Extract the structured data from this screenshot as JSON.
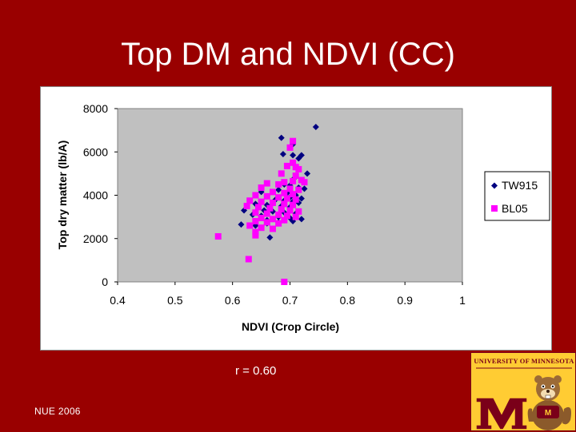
{
  "slide": {
    "title": "Top DM and NDVI (CC)",
    "r_value": "r = 0.60",
    "footer": "NUE 2006",
    "logo_text": "University of Minnesota",
    "background_color": "#990000"
  },
  "chart_data": {
    "type": "scatter",
    "xlabel": "NDVI (Crop Circle)",
    "ylabel": "Top dry matter (lb/A)",
    "xlim": [
      0.4,
      1
    ],
    "ylim": [
      0,
      8000
    ],
    "x_ticks": [
      "0.4",
      "0.5",
      "0.6",
      "0.7",
      "0.8",
      "0.9",
      "1"
    ],
    "y_ticks": [
      "0",
      "2000",
      "4000",
      "6000",
      "8000"
    ],
    "grid": false,
    "plot_area_color": "#c0c0c0",
    "legend_position": "right",
    "series": [
      {
        "name": "TW915",
        "marker": "diamond",
        "color": "#000080",
        "points": [
          [
            0.745,
            7150
          ],
          [
            0.685,
            6650
          ],
          [
            0.705,
            6350
          ],
          [
            0.688,
            5900
          ],
          [
            0.705,
            5850
          ],
          [
            0.72,
            5850
          ],
          [
            0.715,
            5700
          ],
          [
            0.73,
            5000
          ],
          [
            0.708,
            4800
          ],
          [
            0.69,
            4500
          ],
          [
            0.7,
            4450
          ],
          [
            0.715,
            4350
          ],
          [
            0.725,
            4300
          ],
          [
            0.68,
            4250
          ],
          [
            0.65,
            4150
          ],
          [
            0.695,
            4100
          ],
          [
            0.71,
            4000
          ],
          [
            0.66,
            3950
          ],
          [
            0.7,
            3900
          ],
          [
            0.72,
            3850
          ],
          [
            0.675,
            3800
          ],
          [
            0.69,
            3750
          ],
          [
            0.705,
            3700
          ],
          [
            0.715,
            3650
          ],
          [
            0.64,
            3600
          ],
          [
            0.66,
            3550
          ],
          [
            0.685,
            3500
          ],
          [
            0.7,
            3450
          ],
          [
            0.62,
            3300
          ],
          [
            0.655,
            3300
          ],
          [
            0.67,
            3250
          ],
          [
            0.69,
            3200
          ],
          [
            0.71,
            3150
          ],
          [
            0.635,
            3100
          ],
          [
            0.65,
            3050
          ],
          [
            0.68,
            3000
          ],
          [
            0.7,
            2950
          ],
          [
            0.72,
            2900
          ],
          [
            0.66,
            2850
          ],
          [
            0.69,
            2850
          ],
          [
            0.705,
            2800
          ],
          [
            0.615,
            2650
          ],
          [
            0.64,
            2600
          ],
          [
            0.66,
            2700
          ],
          [
            0.68,
            2750
          ],
          [
            0.665,
            2050
          ]
        ]
      },
      {
        "name": "BL05",
        "marker": "square",
        "color": "#ff00ff",
        "points": [
          [
            0.705,
            6500
          ],
          [
            0.7,
            6200
          ],
          [
            0.705,
            5500
          ],
          [
            0.695,
            5350
          ],
          [
            0.71,
            5300
          ],
          [
            0.715,
            5200
          ],
          [
            0.685,
            5000
          ],
          [
            0.71,
            4900
          ],
          [
            0.72,
            4700
          ],
          [
            0.705,
            4650
          ],
          [
            0.69,
            4600
          ],
          [
            0.725,
            4600
          ],
          [
            0.66,
            4550
          ],
          [
            0.68,
            4500
          ],
          [
            0.65,
            4350
          ],
          [
            0.7,
            4300
          ],
          [
            0.715,
            4250
          ],
          [
            0.67,
            4150
          ],
          [
            0.69,
            4100
          ],
          [
            0.705,
            4050
          ],
          [
            0.64,
            4000
          ],
          [
            0.66,
            3950
          ],
          [
            0.68,
            3900
          ],
          [
            0.695,
            3850
          ],
          [
            0.71,
            3800
          ],
          [
            0.63,
            3750
          ],
          [
            0.65,
            3700
          ],
          [
            0.67,
            3650
          ],
          [
            0.69,
            3600
          ],
          [
            0.705,
            3550
          ],
          [
            0.625,
            3500
          ],
          [
            0.645,
            3450
          ],
          [
            0.665,
            3400
          ],
          [
            0.685,
            3350
          ],
          [
            0.7,
            3300
          ],
          [
            0.715,
            3250
          ],
          [
            0.64,
            3200
          ],
          [
            0.66,
            3150
          ],
          [
            0.68,
            3100
          ],
          [
            0.695,
            3050
          ],
          [
            0.71,
            3000
          ],
          [
            0.65,
            2950
          ],
          [
            0.67,
            2900
          ],
          [
            0.69,
            2850
          ],
          [
            0.64,
            2800
          ],
          [
            0.66,
            2750
          ],
          [
            0.68,
            2700
          ],
          [
            0.63,
            2600
          ],
          [
            0.65,
            2500
          ],
          [
            0.67,
            2450
          ],
          [
            0.64,
            2300
          ],
          [
            0.64,
            2150
          ],
          [
            0.575,
            2100
          ],
          [
            0.628,
            1050
          ],
          [
            0.69,
            0
          ]
        ]
      }
    ]
  }
}
